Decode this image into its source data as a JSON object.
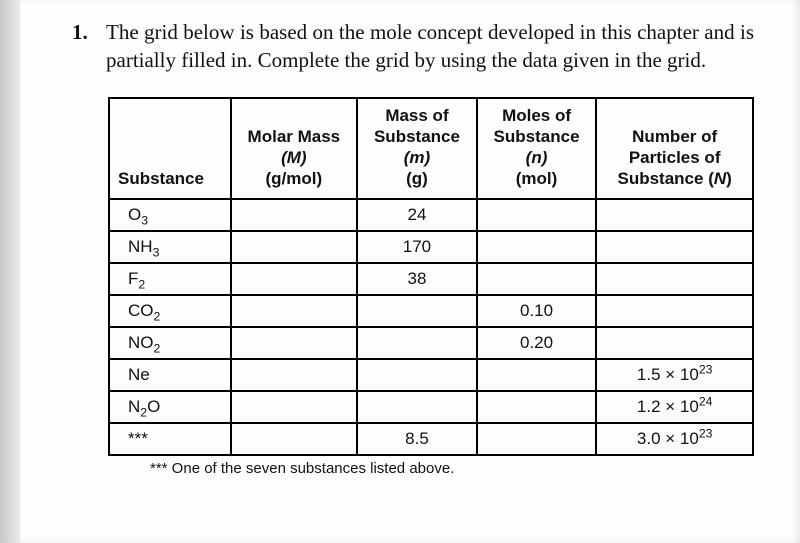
{
  "question": {
    "number": "1.",
    "text": "The grid below is based on the mole concept developed in this chapter and is partially filled in. Complete the grid by using the data given in the grid."
  },
  "headers": {
    "substance": "Substance",
    "molar_mass_l1": "Molar Mass",
    "molar_mass_l2": "(M)",
    "molar_mass_l3": "(g/mol)",
    "mass_l1": "Mass of",
    "mass_l2": "Substance",
    "mass_l3": "(m)",
    "mass_l4": "(g)",
    "moles_l1": "Moles of",
    "moles_l2": "Substance",
    "moles_l3": "(n)",
    "moles_l4": "(mol)",
    "particles_l1": "Number of",
    "particles_l2": "Particles of",
    "particles_l3": "Substance (N)"
  },
  "rows": [
    {
      "sub_html": "O<span class=\"sub\">3</span>",
      "mm": "",
      "m": "24",
      "n": "",
      "np": ""
    },
    {
      "sub_html": "NH<span class=\"sub\">3</span>",
      "mm": "",
      "m": "170",
      "n": "",
      "np": ""
    },
    {
      "sub_html": "F<span class=\"sub\">2</span>",
      "mm": "",
      "m": "38",
      "n": "",
      "np": ""
    },
    {
      "sub_html": "CO<span class=\"sub\">2</span>",
      "mm": "",
      "m": "",
      "n": "0.10",
      "np": ""
    },
    {
      "sub_html": "NO<span class=\"sub\">2</span>",
      "mm": "",
      "m": "",
      "n": "0.20",
      "np": ""
    },
    {
      "sub_html": "Ne",
      "mm": "",
      "m": "",
      "n": "",
      "np": "1.5 × 10<span class=\"sup\">23</span>"
    },
    {
      "sub_html": "N<span class=\"sub\">2</span>O",
      "mm": "",
      "m": "",
      "n": "",
      "np": "1.2 × 10<span class=\"sup\">24</span>"
    },
    {
      "sub_html": "***",
      "mm": "",
      "m": "8.5",
      "n": "",
      "np": "3.0 × 10<span class=\"sup\">23</span>"
    }
  ],
  "footnote": "*** One of the seven substances listed above."
}
